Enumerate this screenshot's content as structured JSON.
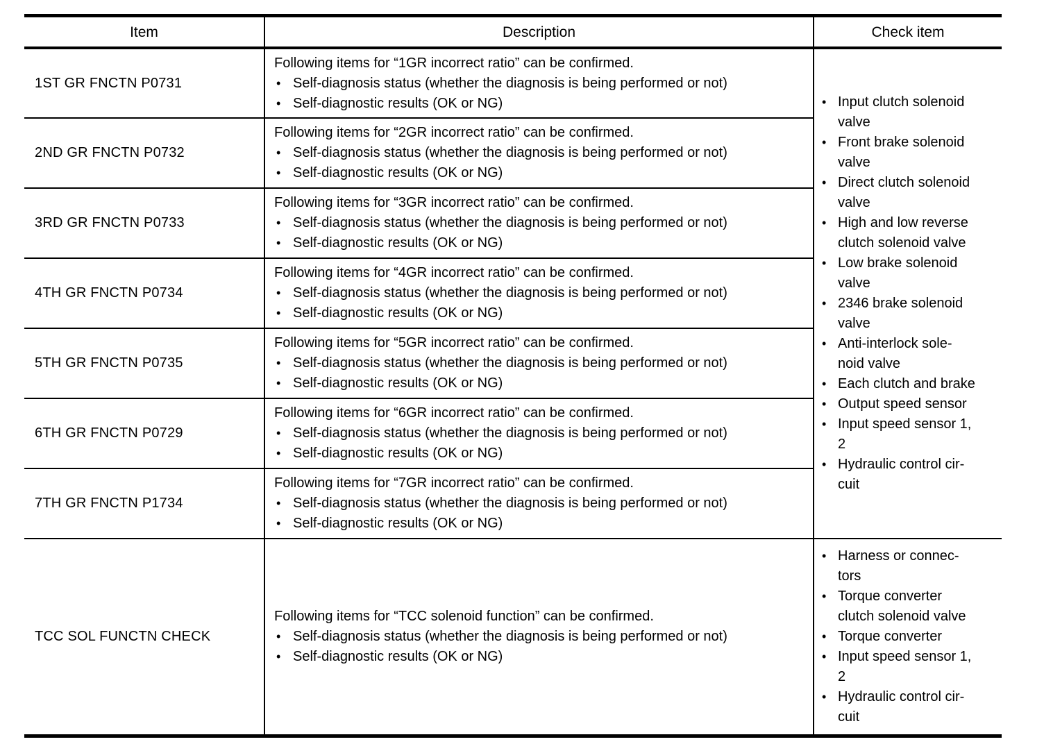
{
  "glyphs": {
    "bullet": "•"
  },
  "table": {
    "headers": [
      "Item",
      "Description",
      "Check item"
    ],
    "rows": [
      {
        "item": "1ST GR FNCTN P0731",
        "description": {
          "heading": "Following items for “1GR incorrect ratio” can be confirmed.",
          "bullets": [
            "Self-diagnosis status (whether the diagnosis is being performed or not)",
            "Self-diagnostic results (OK or NG)"
          ]
        }
      },
      {
        "item": "2ND GR FNCTN P0732",
        "description": {
          "heading": "Following items for “2GR incorrect ratio” can be confirmed.",
          "bullets": [
            "Self-diagnosis status (whether the diagnosis is being performed or not)",
            "Self-diagnostic results (OK or NG)"
          ]
        }
      },
      {
        "item": "3RD GR FNCTN P0733",
        "description": {
          "heading": "Following items for “3GR incorrect ratio” can be confirmed.",
          "bullets": [
            "Self-diagnosis status (whether the diagnosis is being performed or not)",
            "Self-diagnostic results (OK or NG)"
          ]
        }
      },
      {
        "item": "4TH GR FNCTN P0734",
        "description": {
          "heading": "Following items for “4GR incorrect ratio” can be confirmed.",
          "bullets": [
            "Self-diagnosis status (whether the diagnosis is being performed or not)",
            "Self-diagnostic results (OK or NG)"
          ]
        }
      },
      {
        "item": "5TH GR FNCTN P0735",
        "description": {
          "heading": "Following items for “5GR incorrect ratio” can be confirmed.",
          "bullets": [
            "Self-diagnosis status (whether the diagnosis is being performed or not)",
            "Self-diagnostic results (OK or NG)"
          ]
        }
      },
      {
        "item": "6TH GR FNCTN P0729",
        "description": {
          "heading": "Following items for “6GR incorrect ratio” can be confirmed.",
          "bullets": [
            "Self-diagnosis status (whether the diagnosis is being performed or not)",
            "Self-diagnostic results (OK or NG)"
          ]
        }
      },
      {
        "item": "7TH GR FNCTN P1734",
        "description": {
          "heading": "Following items for “7GR incorrect ratio” can be confirmed.",
          "bullets": [
            "Self-diagnosis status (whether the diagnosis is being performed or not)",
            "Self-diagnostic results (OK or NG)"
          ]
        }
      },
      {
        "item": "TCC SOL FUNCTN CHECK",
        "description": {
          "heading": "Following items for “TCC solenoid function” can be confirmed.",
          "bullets": [
            "Self-diagnosis status (whether the diagnosis is being performed or not)",
            "Self-diagnostic results (OK or NG)"
          ]
        }
      }
    ],
    "shared_check_items": [
      "Input clutch solenoid\nvalve",
      "Front brake solenoid\nvalve",
      "Direct clutch solenoid\nvalve",
      "High and low reverse\nclutch solenoid valve",
      "Low brake solenoid\nvalve",
      "2346 brake solenoid\nvalve",
      "Anti-interlock sole-\nnoid valve",
      "Each clutch and brake",
      "Output speed sensor",
      "Input speed sensor 1,\n2",
      "Hydraulic control cir-\ncuit"
    ],
    "tcc_check_items": [
      "Harness or connec-\ntors",
      "Torque converter\nclutch solenoid valve",
      "Torque converter",
      "Input speed sensor 1,\n2",
      "Hydraulic control cir-\ncuit"
    ]
  }
}
